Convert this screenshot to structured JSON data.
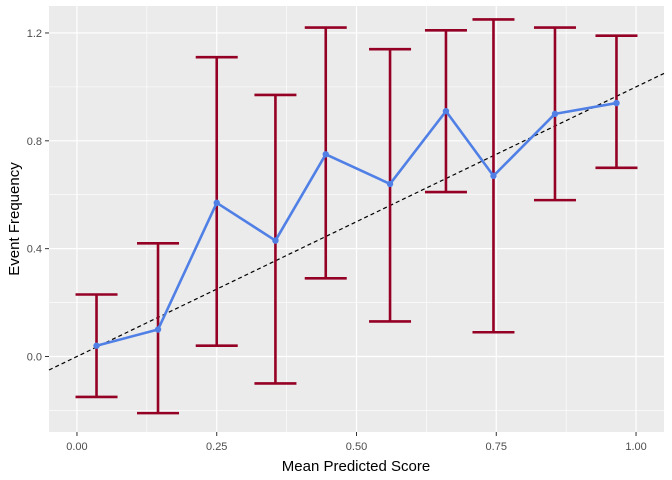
{
  "chart_data": {
    "type": "line",
    "title": "",
    "xlabel": "Mean Predicted Score",
    "ylabel": "Event Frequency",
    "xlim": [
      -0.05,
      1.05
    ],
    "ylim": [
      -0.28,
      1.3
    ],
    "x_ticks": [
      0.0,
      0.25,
      0.5,
      0.75,
      1.0
    ],
    "x_tick_labels": [
      "0.00",
      "0.25",
      "0.50",
      "0.75",
      "1.00"
    ],
    "y_ticks": [
      0.0,
      0.4,
      0.8,
      1.2
    ],
    "y_tick_labels": [
      "0.0",
      "0.4",
      "0.8",
      "1.2"
    ],
    "grid": true,
    "reference_line": {
      "style": "dashed",
      "color": "#000000",
      "from": [
        -0.05,
        -0.05
      ],
      "to": [
        1.05,
        1.05
      ]
    },
    "series": [
      {
        "type": "line",
        "color": "#5080e6",
        "x": [
          0.035,
          0.145,
          0.25,
          0.355,
          0.445,
          0.56,
          0.66,
          0.745,
          0.855,
          0.965
        ],
        "y": [
          0.04,
          0.1,
          0.57,
          0.43,
          0.75,
          0.64,
          0.91,
          0.67,
          0.9,
          0.94
        ]
      }
    ],
    "error_bars": {
      "color": "#950025",
      "lower": [
        -0.15,
        -0.21,
        0.04,
        -0.1,
        0.29,
        0.13,
        0.61,
        0.09,
        0.58,
        0.7
      ],
      "upper": [
        0.23,
        0.42,
        1.11,
        0.97,
        1.22,
        1.14,
        1.21,
        1.25,
        1.22,
        1.19
      ]
    }
  }
}
